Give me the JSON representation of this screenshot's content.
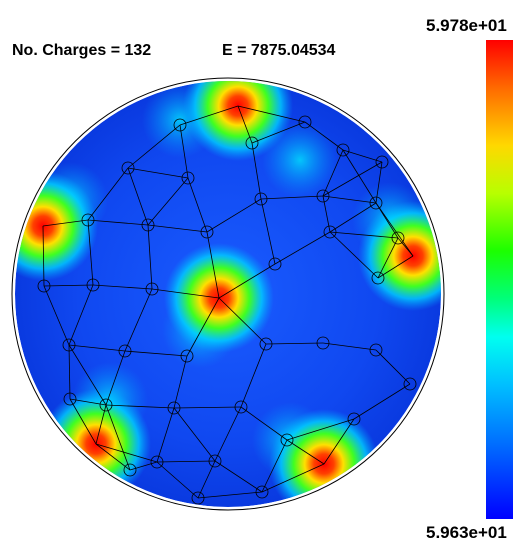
{
  "header": {
    "charges_label": "No. Charges =  132",
    "energy_label": "E = 7875.04534"
  },
  "colorbar": {
    "max_label": "5.978e+01",
    "min_label": "5.963e+01"
  },
  "colors": {
    "low": "#0000ff",
    "mid": "#00c8ff",
    "high": "#ff0000"
  }
}
